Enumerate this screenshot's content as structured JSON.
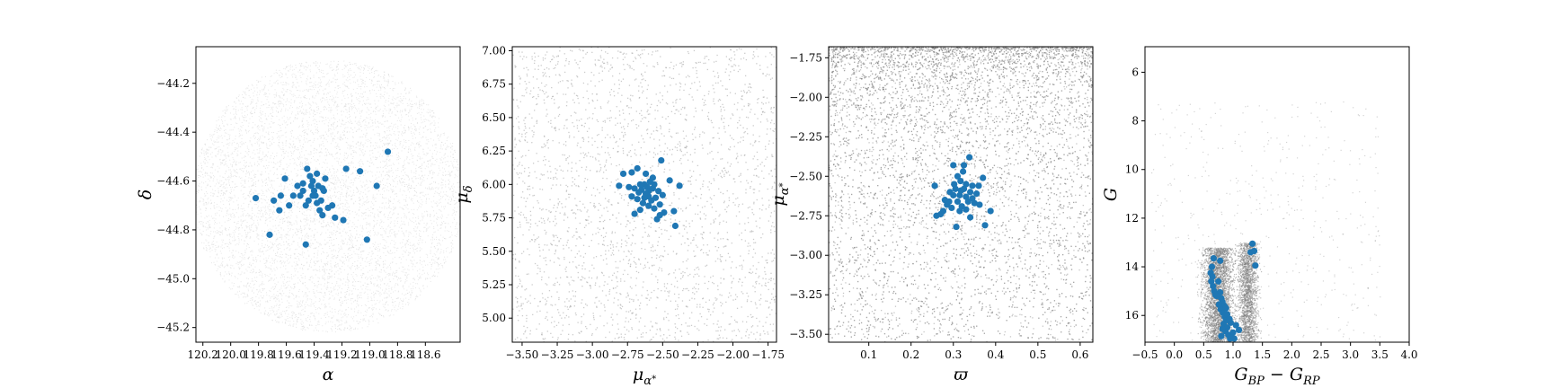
{
  "chart_data": [
    {
      "type": "scatter",
      "title": "",
      "xlabel": "α",
      "ylabel": "δ",
      "xlim": [
        120.25,
        118.35
      ],
      "ylim": [
        -45.26,
        -44.05
      ],
      "x_inverted": true,
      "xticks": [
        120.2,
        120.0,
        119.8,
        119.6,
        119.4,
        119.2,
        119.0,
        118.8,
        118.6
      ],
      "xtick_labels": [
        "120.2",
        "120.0",
        "119.8",
        "119.6",
        "119.4",
        "119.2",
        "119.0",
        "118.8",
        "118.6"
      ],
      "yticks": [
        -44.2,
        -44.4,
        -44.6,
        -44.8,
        -45.0,
        -45.2
      ],
      "ytick_labels": [
        "−44.2",
        "−44.4",
        "−44.6",
        "−44.8",
        "−45.0",
        "−45.2"
      ],
      "background": {
        "shape": "ellipse",
        "center": [
          119.3,
          -44.66
        ],
        "radius_x": 0.97,
        "radius_y": 0.56,
        "color": "#d3d3d3"
      },
      "series": [
        {
          "color": "#1f77b4",
          "points": [
            [
              118.87,
              -44.48
            ],
            [
              119.17,
              -44.55
            ],
            [
              119.07,
              -44.56
            ],
            [
              119.19,
              -44.76
            ],
            [
              118.95,
              -44.62
            ],
            [
              119.02,
              -44.84
            ],
            [
              119.32,
              -44.59
            ],
            [
              119.34,
              -44.63
            ],
            [
              119.38,
              -44.57
            ],
            [
              119.45,
              -44.55
            ],
            [
              119.43,
              -44.58
            ],
            [
              119.48,
              -44.61
            ],
            [
              119.52,
              -44.62
            ],
            [
              119.41,
              -44.6
            ],
            [
              119.42,
              -44.62
            ],
            [
              119.4,
              -44.64
            ],
            [
              119.39,
              -44.66
            ],
            [
              119.38,
              -44.69
            ],
            [
              119.41,
              -44.66
            ],
            [
              119.44,
              -44.68
            ],
            [
              119.36,
              -44.72
            ],
            [
              119.34,
              -44.74
            ],
            [
              119.3,
              -44.71
            ],
            [
              119.27,
              -44.7
            ],
            [
              119.25,
              -44.75
            ],
            [
              119.5,
              -44.66
            ],
            [
              119.55,
              -44.66
            ],
            [
              119.61,
              -44.59
            ],
            [
              119.64,
              -44.66
            ],
            [
              119.69,
              -44.68
            ],
            [
              119.65,
              -44.72
            ],
            [
              119.58,
              -44.7
            ],
            [
              119.82,
              -44.67
            ],
            [
              119.72,
              -44.82
            ],
            [
              119.46,
              -44.86
            ],
            [
              119.48,
              -44.64
            ],
            [
              119.37,
              -44.62
            ],
            [
              119.33,
              -44.64
            ],
            [
              119.35,
              -44.68
            ],
            [
              119.46,
              -44.7
            ]
          ]
        }
      ]
    },
    {
      "type": "scatter",
      "title": "",
      "xlabel": "μα*",
      "ylabel": "μδ",
      "xlim": [
        -3.57,
        -1.69
      ],
      "ylim": [
        4.82,
        7.03
      ],
      "xticks": [
        -3.5,
        -3.25,
        -3.0,
        -2.75,
        -2.5,
        -2.25,
        -2.0,
        -1.75
      ],
      "xtick_labels": [
        "−3.50",
        "−3.25",
        "−3.00",
        "−2.75",
        "−2.50",
        "−2.25",
        "−2.00",
        "−1.75"
      ],
      "yticks": [
        5.0,
        5.25,
        5.5,
        5.75,
        6.0,
        6.25,
        6.5,
        6.75,
        7.0
      ],
      "ytick_labels": [
        "5.00",
        "5.25",
        "5.50",
        "5.75",
        "6.00",
        "6.25",
        "6.50",
        "6.75",
        "7.00"
      ],
      "background": {
        "shape": "uniform",
        "color": "#a9a9a9"
      },
      "series": [
        {
          "color": "#1f77b4",
          "points": [
            [
              -2.51,
              6.18
            ],
            [
              -2.57,
              6.05
            ],
            [
              -2.68,
              6.12
            ],
            [
              -2.72,
              6.09
            ],
            [
              -2.78,
              6.08
            ],
            [
              -2.62,
              6.08
            ],
            [
              -2.59,
              6.02
            ],
            [
              -2.63,
              6.0
            ],
            [
              -2.61,
              5.98
            ],
            [
              -2.6,
              5.95
            ],
            [
              -2.65,
              5.96
            ],
            [
              -2.67,
              5.94
            ],
            [
              -2.7,
              5.97
            ],
            [
              -2.74,
              5.98
            ],
            [
              -2.81,
              5.99
            ],
            [
              -2.66,
              6.0
            ],
            [
              -2.57,
              5.97
            ],
            [
              -2.53,
              5.95
            ],
            [
              -2.5,
              5.92
            ],
            [
              -2.45,
              6.03
            ],
            [
              -2.38,
              5.99
            ],
            [
              -2.55,
              5.9
            ],
            [
              -2.58,
              5.88
            ],
            [
              -2.6,
              5.91
            ],
            [
              -2.63,
              5.9
            ],
            [
              -2.68,
              5.89
            ],
            [
              -2.72,
              5.91
            ],
            [
              -2.64,
              5.86
            ],
            [
              -2.6,
              5.84
            ],
            [
              -2.56,
              5.82
            ],
            [
              -2.52,
              5.85
            ],
            [
              -2.49,
              5.79
            ],
            [
              -2.52,
              5.77
            ],
            [
              -2.54,
              5.74
            ],
            [
              -2.42,
              5.8
            ],
            [
              -2.41,
              5.69
            ],
            [
              -2.7,
              5.78
            ],
            [
              -2.66,
              5.81
            ],
            [
              -2.62,
              5.93
            ],
            [
              -2.56,
              6.0
            ]
          ]
        }
      ]
    },
    {
      "type": "scatter",
      "title": "",
      "xlabel": "ϖ",
      "ylabel": "μα*",
      "xlim": [
        0.005,
        0.63
      ],
      "ylim": [
        -3.55,
        -1.68
      ],
      "xticks": [
        0.1,
        0.2,
        0.3,
        0.4,
        0.5,
        0.6
      ],
      "xtick_labels": [
        "0.1",
        "0.2",
        "0.3",
        "0.4",
        "0.5",
        "0.6"
      ],
      "yticks": [
        -3.5,
        -3.25,
        -3.0,
        -2.75,
        -2.5,
        -2.25,
        -2.0,
        -1.75
      ],
      "ytick_labels": [
        "−3.50",
        "−3.25",
        "−3.00",
        "−2.75",
        "−2.50",
        "−2.25",
        "−2.00",
        "−1.75"
      ],
      "background": {
        "shape": "density_top",
        "color": "#808080"
      },
      "series": [
        {
          "color": "#1f77b4",
          "points": [
            [
              0.338,
              -2.38
            ],
            [
              0.325,
              -2.43
            ],
            [
              0.3,
              -2.43
            ],
            [
              0.323,
              -2.47
            ],
            [
              0.31,
              -2.5
            ],
            [
              0.317,
              -2.53
            ],
            [
              0.33,
              -2.55
            ],
            [
              0.345,
              -2.56
            ],
            [
              0.37,
              -2.51
            ],
            [
              0.36,
              -2.56
            ],
            [
              0.325,
              -2.58
            ],
            [
              0.305,
              -2.58
            ],
            [
              0.292,
              -2.6
            ],
            [
              0.3,
              -2.62
            ],
            [
              0.315,
              -2.62
            ],
            [
              0.33,
              -2.63
            ],
            [
              0.345,
              -2.64
            ],
            [
              0.355,
              -2.61
            ],
            [
              0.28,
              -2.65
            ],
            [
              0.285,
              -2.68
            ],
            [
              0.296,
              -2.7
            ],
            [
              0.31,
              -2.66
            ],
            [
              0.32,
              -2.69
            ],
            [
              0.335,
              -2.66
            ],
            [
              0.35,
              -2.67
            ],
            [
              0.34,
              -2.76
            ],
            [
              0.256,
              -2.56
            ],
            [
              0.26,
              -2.75
            ],
            [
              0.276,
              -2.72
            ],
            [
              0.27,
              -2.74
            ],
            [
              0.388,
              -2.72
            ],
            [
              0.375,
              -2.81
            ],
            [
              0.307,
              -2.82
            ],
            [
              0.362,
              -2.68
            ],
            [
              0.318,
              -2.59
            ],
            [
              0.33,
              -2.71
            ],
            [
              0.29,
              -2.66
            ],
            [
              0.302,
              -2.55
            ],
            [
              0.315,
              -2.72
            ],
            [
              0.34,
              -2.6
            ]
          ]
        }
      ]
    },
    {
      "type": "scatter",
      "title": "",
      "xlabel": "G_BP − G_RP",
      "ylabel": "G",
      "xlim": [
        -0.5,
        4.0
      ],
      "ylim": [
        17.1,
        4.95
      ],
      "y_inverted": true,
      "xticks": [
        -0.5,
        0.0,
        0.5,
        1.0,
        1.5,
        2.0,
        2.5,
        3.0,
        3.5,
        4.0
      ],
      "xtick_labels": [
        "−0.5",
        "0.0",
        "0.5",
        "1.0",
        "1.5",
        "2.0",
        "2.5",
        "3.0",
        "3.5",
        "4.0"
      ],
      "yticks": [
        6,
        8,
        10,
        12,
        14,
        16
      ],
      "ytick_labels": [
        "6",
        "8",
        "10",
        "12",
        "14",
        "16"
      ],
      "background": {
        "shape": "cmd",
        "color": "#808080"
      },
      "series": [
        {
          "color": "#1f77b4",
          "points": [
            [
              1.33,
              13.05
            ],
            [
              1.3,
              13.4
            ],
            [
              1.36,
              13.35
            ],
            [
              1.38,
              13.95
            ],
            [
              0.67,
              13.65
            ],
            [
              0.78,
              13.75
            ],
            [
              0.64,
              14.0
            ],
            [
              0.62,
              14.25
            ],
            [
              0.65,
              14.4
            ],
            [
              0.63,
              14.6
            ],
            [
              0.66,
              14.8
            ],
            [
              0.68,
              15.0
            ],
            [
              0.7,
              15.15
            ],
            [
              0.75,
              14.6
            ],
            [
              0.78,
              15.05
            ],
            [
              0.8,
              15.3
            ],
            [
              0.82,
              15.45
            ],
            [
              0.85,
              15.6
            ],
            [
              0.79,
              15.75
            ],
            [
              0.83,
              15.9
            ],
            [
              0.86,
              16.05
            ],
            [
              0.88,
              16.2
            ],
            [
              0.84,
              16.35
            ],
            [
              0.9,
              16.5
            ],
            [
              0.87,
              16.65
            ],
            [
              0.92,
              16.8
            ],
            [
              0.95,
              16.95
            ],
            [
              1.0,
              16.7
            ],
            [
              1.05,
              16.4
            ],
            [
              1.1,
              16.6
            ],
            [
              0.96,
              16.3
            ],
            [
              0.9,
              15.95
            ],
            [
              0.82,
              16.55
            ],
            [
              0.98,
              16.9
            ],
            [
              1.02,
              16.95
            ],
            [
              0.76,
              15.55
            ],
            [
              0.72,
              15.2
            ],
            [
              0.88,
              15.7
            ],
            [
              0.8,
              16.85
            ],
            [
              0.94,
              16.15
            ]
          ]
        }
      ]
    }
  ]
}
